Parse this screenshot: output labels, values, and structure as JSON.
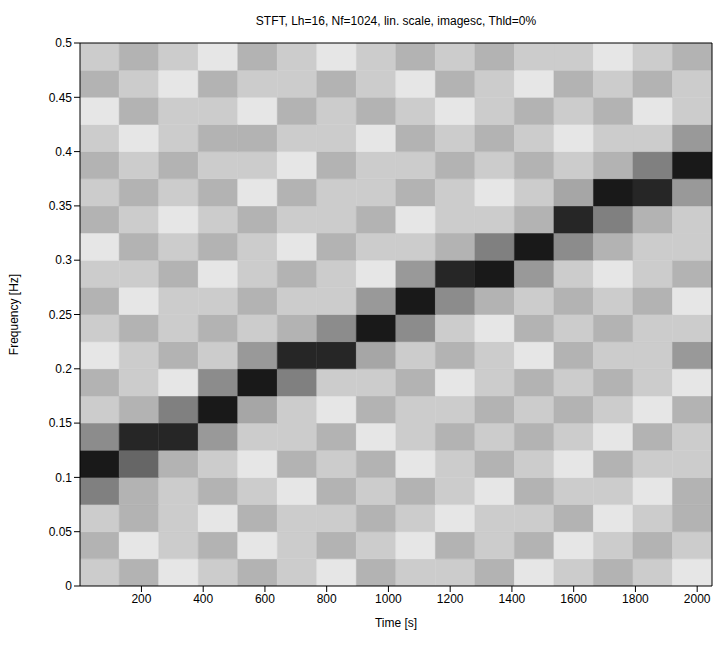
{
  "chart_data": {
    "type": "heatmap",
    "title": "STFT, Lh=16, Nf=1024, lin. scale, imagesc, Thld=0%",
    "x_label": "Time [s]",
    "y_label": "Frequency [Hz]",
    "xlim": [
      1,
      2048
    ],
    "xticks": [
      200,
      400,
      600,
      800,
      1000,
      1200,
      1400,
      1600,
      1800,
      2000
    ],
    "ylim": [
      0,
      0.5
    ],
    "yticks": [
      0,
      0.05,
      0.1,
      0.15,
      0.2,
      0.25,
      0.3,
      0.35,
      0.4,
      0.45,
      0.5
    ],
    "x_edges": [
      1,
      128,
      256,
      384,
      512,
      640,
      768,
      896,
      1024,
      1152,
      1280,
      1408,
      1536,
      1664,
      1792,
      1920,
      2048
    ],
    "y_edges": [
      0,
      0.025,
      0.05,
      0.075,
      0.1,
      0.125,
      0.15,
      0.175,
      0.2,
      0.225,
      0.25,
      0.275,
      0.3,
      0.325,
      0.35,
      0.375,
      0.4,
      0.425,
      0.45,
      0.475,
      0.5
    ],
    "value_range": [
      0,
      1
    ],
    "cells": [
      [
        0.2,
        0.3,
        0.1,
        0.2,
        0.3,
        0.2,
        0.1,
        0.3,
        0.2,
        0.2,
        0.3,
        0.1,
        0.2,
        0.3,
        0.2,
        0.1
      ],
      [
        0.3,
        0.1,
        0.2,
        0.3,
        0.1,
        0.2,
        0.3,
        0.2,
        0.1,
        0.3,
        0.2,
        0.3,
        0.1,
        0.2,
        0.3,
        0.2
      ],
      [
        0.2,
        0.3,
        0.2,
        0.1,
        0.3,
        0.2,
        0.2,
        0.3,
        0.2,
        0.1,
        0.2,
        0.2,
        0.3,
        0.1,
        0.2,
        0.3
      ],
      [
        0.5,
        0.3,
        0.2,
        0.3,
        0.2,
        0.1,
        0.3,
        0.2,
        0.3,
        0.2,
        0.1,
        0.3,
        0.2,
        0.2,
        0.1,
        0.3
      ],
      [
        0.9,
        0.6,
        0.3,
        0.2,
        0.1,
        0.3,
        0.2,
        0.3,
        0.1,
        0.2,
        0.3,
        0.2,
        0.1,
        0.3,
        0.2,
        0.2
      ],
      [
        0.45,
        0.85,
        0.85,
        0.4,
        0.2,
        0.2,
        0.3,
        0.1,
        0.2,
        0.3,
        0.2,
        0.3,
        0.2,
        0.1,
        0.3,
        0.2
      ],
      [
        0.2,
        0.3,
        0.5,
        0.9,
        0.35,
        0.2,
        0.1,
        0.3,
        0.2,
        0.2,
        0.3,
        0.2,
        0.3,
        0.2,
        0.1,
        0.3
      ],
      [
        0.3,
        0.2,
        0.1,
        0.45,
        0.9,
        0.5,
        0.2,
        0.2,
        0.3,
        0.1,
        0.2,
        0.3,
        0.2,
        0.3,
        0.2,
        0.1
      ],
      [
        0.1,
        0.2,
        0.3,
        0.2,
        0.4,
        0.85,
        0.85,
        0.35,
        0.2,
        0.3,
        0.2,
        0.1,
        0.3,
        0.2,
        0.2,
        0.4
      ],
      [
        0.2,
        0.3,
        0.2,
        0.3,
        0.2,
        0.3,
        0.45,
        0.9,
        0.45,
        0.2,
        0.1,
        0.3,
        0.2,
        0.3,
        0.2,
        0.2
      ],
      [
        0.3,
        0.1,
        0.2,
        0.2,
        0.3,
        0.2,
        0.2,
        0.4,
        0.9,
        0.45,
        0.3,
        0.2,
        0.3,
        0.2,
        0.3,
        0.1
      ],
      [
        0.2,
        0.2,
        0.3,
        0.1,
        0.2,
        0.3,
        0.2,
        0.1,
        0.4,
        0.85,
        0.9,
        0.4,
        0.2,
        0.1,
        0.2,
        0.3
      ],
      [
        0.1,
        0.3,
        0.2,
        0.3,
        0.2,
        0.1,
        0.3,
        0.2,
        0.2,
        0.3,
        0.5,
        0.9,
        0.45,
        0.3,
        0.2,
        0.2
      ],
      [
        0.3,
        0.2,
        0.1,
        0.2,
        0.3,
        0.2,
        0.2,
        0.3,
        0.1,
        0.2,
        0.2,
        0.3,
        0.85,
        0.5,
        0.3,
        0.2
      ],
      [
        0.2,
        0.3,
        0.2,
        0.3,
        0.1,
        0.3,
        0.2,
        0.2,
        0.3,
        0.2,
        0.1,
        0.2,
        0.35,
        0.9,
        0.85,
        0.4
      ],
      [
        0.3,
        0.2,
        0.3,
        0.2,
        0.2,
        0.1,
        0.3,
        0.2,
        0.2,
        0.3,
        0.2,
        0.3,
        0.2,
        0.3,
        0.5,
        0.9
      ],
      [
        0.2,
        0.1,
        0.2,
        0.3,
        0.3,
        0.2,
        0.2,
        0.1,
        0.3,
        0.2,
        0.3,
        0.2,
        0.1,
        0.2,
        0.2,
        0.4
      ],
      [
        0.1,
        0.3,
        0.2,
        0.2,
        0.1,
        0.3,
        0.2,
        0.3,
        0.2,
        0.1,
        0.2,
        0.3,
        0.2,
        0.3,
        0.1,
        0.2
      ],
      [
        0.3,
        0.2,
        0.1,
        0.3,
        0.2,
        0.2,
        0.3,
        0.2,
        0.1,
        0.3,
        0.2,
        0.1,
        0.3,
        0.2,
        0.3,
        0.2
      ],
      [
        0.2,
        0.3,
        0.2,
        0.1,
        0.3,
        0.2,
        0.1,
        0.2,
        0.3,
        0.2,
        0.3,
        0.2,
        0.2,
        0.1,
        0.2,
        0.3
      ]
    ]
  }
}
